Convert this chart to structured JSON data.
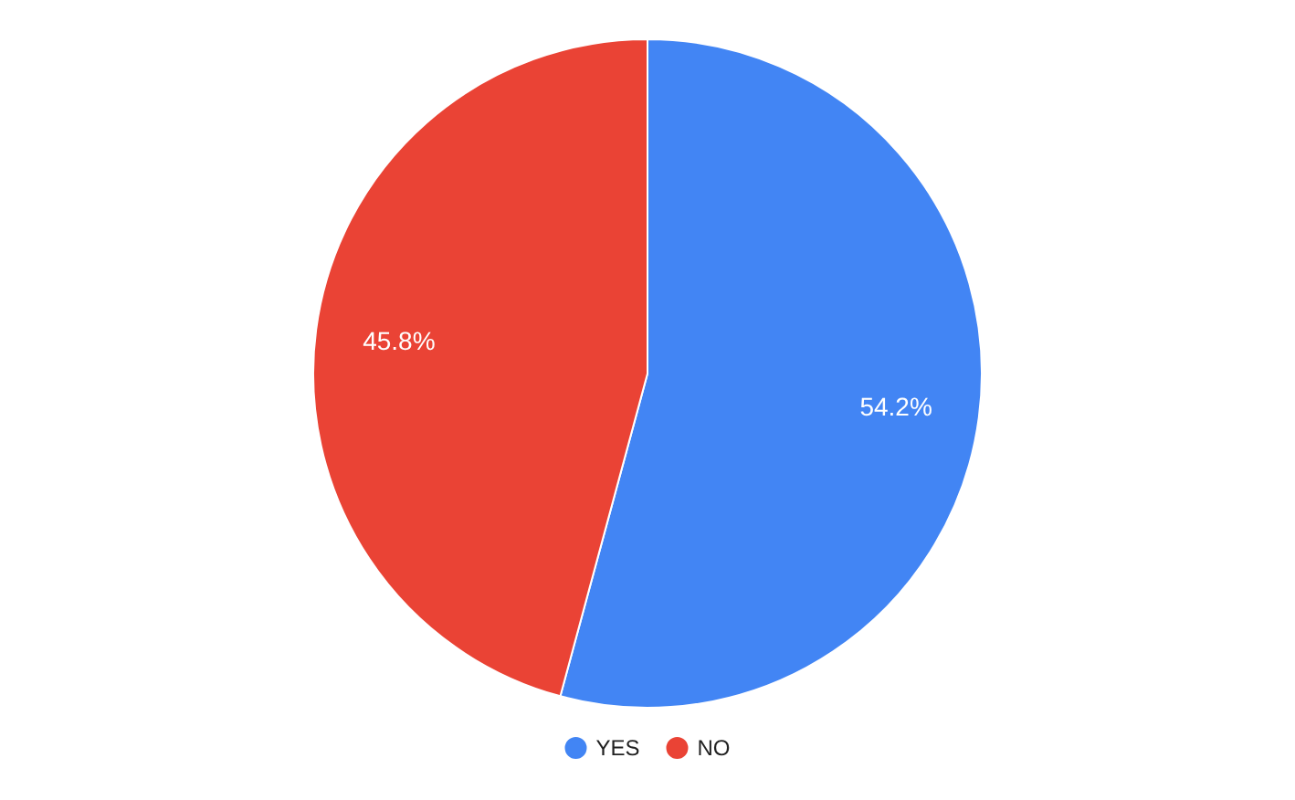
{
  "chart_data": {
    "type": "pie",
    "categories": [
      "YES",
      "NO"
    ],
    "values": [
      54.2,
      45.8
    ],
    "colors": [
      "#4285f4",
      "#ea4335"
    ],
    "value_labels": [
      "54.2%",
      "45.8%"
    ],
    "legend": "bottom"
  }
}
